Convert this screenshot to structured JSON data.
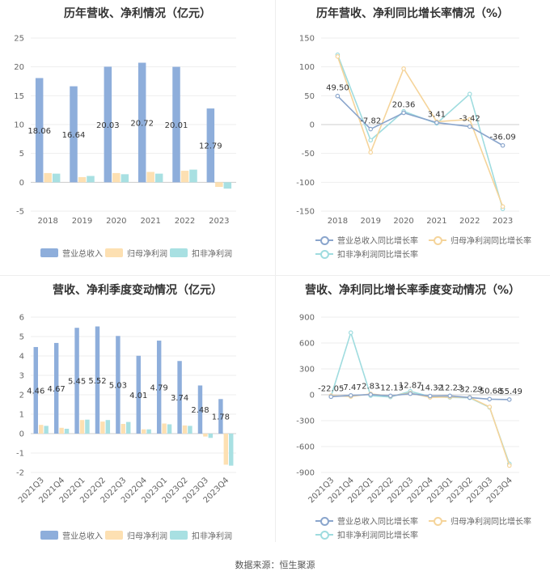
{
  "source": "数据来源：恒生聚源",
  "colors": {
    "revenue": "#8eaedb",
    "net_profit": "#fde0b2",
    "deducted_profit": "#a8e0e2",
    "revenue_line": "#8aa5cc",
    "net_profit_line": "#f5d49a",
    "deducted_profit_line": "#9fdcdf"
  },
  "chart_data": [
    {
      "type": "bar",
      "title": "历年营收、净利情况（亿元）",
      "categories": [
        "2018",
        "2019",
        "2020",
        "2021",
        "2022",
        "2023"
      ],
      "ylim": [
        -5,
        25
      ],
      "yticks": [
        -5,
        0,
        5,
        10,
        15,
        20,
        25
      ],
      "legend_position": "bottom",
      "series": [
        {
          "name": "营业总收入",
          "values": [
            18.06,
            16.64,
            20.03,
            20.72,
            20.01,
            12.79
          ],
          "labels": [
            "18.06",
            "16.64",
            "20.03",
            "20.72",
            "20.01",
            "12.79"
          ]
        },
        {
          "name": "归母净利润",
          "values": [
            1.6,
            0.9,
            1.6,
            1.8,
            2.0,
            -0.8
          ]
        },
        {
          "name": "扣非净利润",
          "values": [
            1.5,
            1.1,
            1.4,
            1.5,
            2.2,
            -1.1
          ]
        }
      ]
    },
    {
      "type": "line",
      "title": "历年营收、净利同比增长率情况（%）",
      "categories": [
        "2018",
        "2019",
        "2020",
        "2021",
        "2022",
        "2023"
      ],
      "ylim": [
        -150,
        150
      ],
      "yticks": [
        -150,
        -100,
        -50,
        0,
        50,
        100,
        150
      ],
      "legend_position": "bottom",
      "series": [
        {
          "name": "营业总收入同比增长率",
          "values": [
            49.5,
            -7.82,
            20.36,
            3.41,
            -3.42,
            -36.09
          ],
          "labels": [
            "49.50",
            "-7.82",
            "20.36",
            "3.41",
            "-3.42",
            "-36.09"
          ]
        },
        {
          "name": "归母净利润同比增长率",
          "values": [
            118,
            -48,
            97,
            5,
            9,
            -142
          ]
        },
        {
          "name": "扣非净利润同比增长率",
          "values": [
            121,
            -27,
            23,
            2,
            53,
            -146
          ]
        }
      ]
    },
    {
      "type": "bar",
      "title": "营收、净利季度变动情况（亿元）",
      "categories": [
        "2021Q3",
        "2021Q4",
        "2022Q1",
        "2022Q2",
        "2022Q3",
        "2022Q4",
        "2023Q1",
        "2023Q2",
        "2023Q3",
        "2023Q4"
      ],
      "ylim": [
        -2,
        6
      ],
      "yticks": [
        -2,
        -1,
        0,
        1,
        2,
        3,
        4,
        5,
        6
      ],
      "legend_position": "bottom",
      "series": [
        {
          "name": "营业总收入",
          "values": [
            4.46,
            4.67,
            5.45,
            5.52,
            5.03,
            4.01,
            4.79,
            3.74,
            2.48,
            1.78
          ],
          "labels": [
            "4.46",
            "4.67",
            "5.45",
            "5.52",
            "5.03",
            "4.01",
            "4.79",
            "3.74",
            "2.48",
            "1.78"
          ]
        },
        {
          "name": "归母净利润",
          "values": [
            0.45,
            0.3,
            0.7,
            0.62,
            0.5,
            0.22,
            0.52,
            0.42,
            -0.15,
            -1.6
          ]
        },
        {
          "name": "扣非净利润",
          "values": [
            0.4,
            0.25,
            0.72,
            0.7,
            0.6,
            0.22,
            0.48,
            0.4,
            -0.22,
            -1.65
          ]
        }
      ]
    },
    {
      "type": "line",
      "title": "营收、净利同比增长率季度变动情况（%）",
      "categories": [
        "2021Q3",
        "2021Q4",
        "2022Q1",
        "2022Q2",
        "2022Q3",
        "2022Q4",
        "2023Q1",
        "2023Q2",
        "2023Q3",
        "2023Q4"
      ],
      "ylim": [
        -900,
        900
      ],
      "yticks": [
        -900,
        -600,
        -300,
        0,
        300,
        600,
        900
      ],
      "legend_position": "bottom",
      "series": [
        {
          "name": "营业总收入同比增长率",
          "values": [
            -22.05,
            -7.47,
            2.83,
            -12.13,
            12.87,
            -14.32,
            -12.23,
            -32.29,
            -50.68,
            -55.49
          ],
          "labels": [
            "-22.05",
            "-7.47",
            "2.83",
            "-12.13",
            "12.87",
            "-14.32",
            "-12.23",
            "-32.29",
            "-50.68",
            "-55.49"
          ]
        },
        {
          "name": "归母净利润同比增长率",
          "values": [
            -10,
            -20,
            10,
            -15,
            20,
            -30,
            -25,
            -30,
            -140,
            -820
          ]
        },
        {
          "name": "扣非净利润同比增长率",
          "values": [
            -20,
            720,
            -10,
            -25,
            40,
            -20,
            -30,
            -35,
            -145,
            -800
          ]
        }
      ]
    }
  ]
}
